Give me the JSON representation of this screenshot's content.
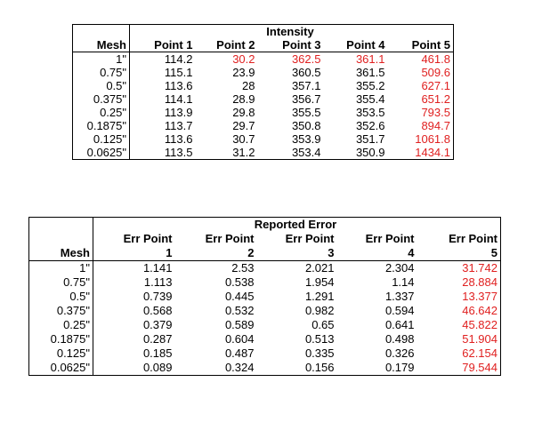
{
  "intensity_table": {
    "title": "Intensity",
    "mesh_header": "Mesh",
    "columns": [
      "Point 1",
      "Point 2",
      "Point 3",
      "Point 4",
      "Point 5"
    ],
    "rows": [
      {
        "mesh": "1\"",
        "values": [
          "114.2",
          "30.2",
          "362.5",
          "361.1",
          "461.8"
        ],
        "red": [
          false,
          true,
          true,
          true,
          true
        ]
      },
      {
        "mesh": "0.75\"",
        "values": [
          "115.1",
          "23.9",
          "360.5",
          "361.5",
          "509.6"
        ],
        "red": [
          false,
          false,
          false,
          false,
          true
        ]
      },
      {
        "mesh": "0.5\"",
        "values": [
          "113.6",
          "28",
          "357.1",
          "355.2",
          "627.1"
        ],
        "red": [
          false,
          false,
          false,
          false,
          true
        ]
      },
      {
        "mesh": "0.375\"",
        "values": [
          "114.1",
          "28.9",
          "356.7",
          "355.4",
          "651.2"
        ],
        "red": [
          false,
          false,
          false,
          false,
          true
        ]
      },
      {
        "mesh": "0.25\"",
        "values": [
          "113.9",
          "29.8",
          "355.5",
          "353.5",
          "793.5"
        ],
        "red": [
          false,
          false,
          false,
          false,
          true
        ]
      },
      {
        "mesh": "0.1875\"",
        "values": [
          "113.7",
          "29.7",
          "350.8",
          "352.6",
          "894.7"
        ],
        "red": [
          false,
          false,
          false,
          false,
          true
        ]
      },
      {
        "mesh": "0.125\"",
        "values": [
          "113.6",
          "30.7",
          "353.9",
          "351.7",
          "1061.8"
        ],
        "red": [
          false,
          false,
          false,
          false,
          true
        ]
      },
      {
        "mesh": "0.0625\"",
        "values": [
          "113.5",
          "31.2",
          "353.4",
          "350.9",
          "1434.1"
        ],
        "red": [
          false,
          false,
          false,
          false,
          true
        ]
      }
    ]
  },
  "error_table": {
    "title": "Reported Error",
    "mesh_header": "Mesh",
    "columns_top": [
      "Err Point",
      "Err Point",
      "Err Point",
      "Err Point",
      "Err Point"
    ],
    "columns_bottom": [
      "1",
      "2",
      "3",
      "4",
      "5"
    ],
    "rows": [
      {
        "mesh": "1\"",
        "values": [
          "1.141",
          "2.53",
          "2.021",
          "2.304",
          "31.742"
        ]
      },
      {
        "mesh": "0.75\"",
        "values": [
          "1.113",
          "0.538",
          "1.954",
          "1.14",
          "28.884"
        ]
      },
      {
        "mesh": "0.5\"",
        "values": [
          "0.739",
          "0.445",
          "1.291",
          "1.337",
          "13.377"
        ]
      },
      {
        "mesh": "0.375\"",
        "values": [
          "0.568",
          "0.532",
          "0.982",
          "0.594",
          "46.642"
        ]
      },
      {
        "mesh": "0.25\"",
        "values": [
          "0.379",
          "0.589",
          "0.65",
          "0.641",
          "45.822"
        ]
      },
      {
        "mesh": "0.1875\"",
        "values": [
          "0.287",
          "0.604",
          "0.513",
          "0.498",
          "51.904"
        ]
      },
      {
        "mesh": "0.125\"",
        "values": [
          "0.185",
          "0.487",
          "0.335",
          "0.326",
          "62.154"
        ]
      },
      {
        "mesh": "0.0625\"",
        "values": [
          "0.089",
          "0.324",
          "0.156",
          "0.179",
          "79.544"
        ]
      }
    ],
    "red_column_index": 4
  },
  "colors": {
    "highlight": "#e02020",
    "text": "#000000",
    "border": "#000000"
  }
}
